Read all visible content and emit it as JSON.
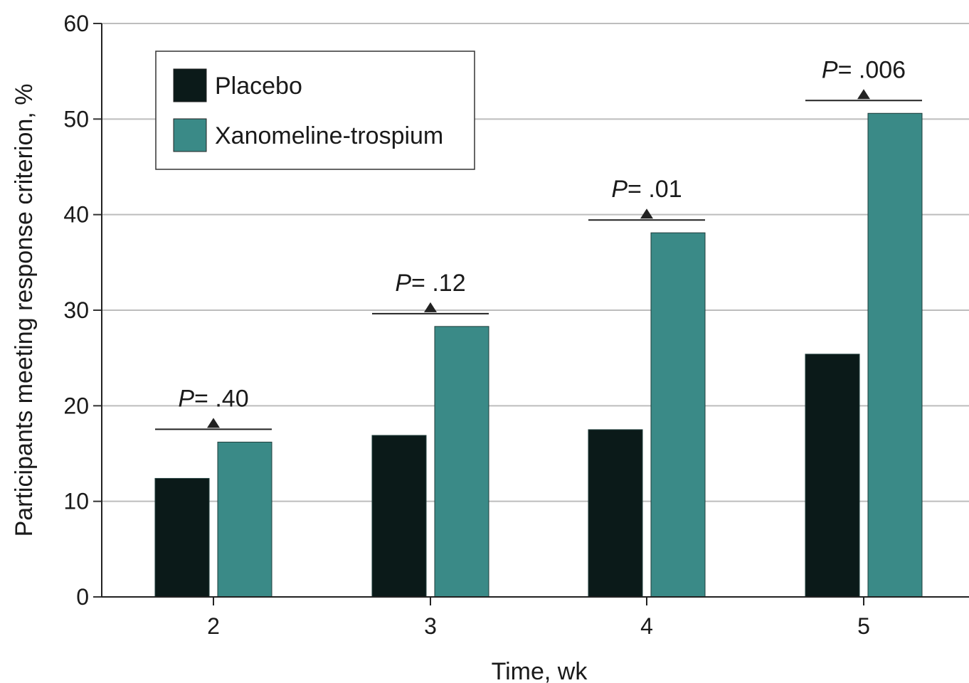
{
  "chart_data": {
    "type": "bar",
    "xlabel": "Time, wk",
    "ylabel": "Participants meeting response criterion, %",
    "ylim": [
      0,
      60
    ],
    "yticks": [
      0,
      10,
      20,
      30,
      40,
      50,
      60
    ],
    "grid": true,
    "legend_position": "top-left",
    "categories": [
      "2",
      "3",
      "4",
      "5"
    ],
    "series": [
      {
        "name": "Placebo",
        "color": "#0b1a19",
        "values": [
          12.4,
          16.9,
          17.5,
          25.4
        ]
      },
      {
        "name": "Xanomeline-trospium",
        "color": "#3a8a87",
        "values": [
          16.2,
          28.3,
          38.1,
          50.6
        ]
      }
    ],
    "annotations": [
      {
        "category": "2",
        "p_label": "P",
        "p_value": "= .40"
      },
      {
        "category": "3",
        "p_label": "P",
        "p_value": "= .12"
      },
      {
        "category": "4",
        "p_label": "P",
        "p_value": "= .01"
      },
      {
        "category": "5",
        "p_label": "P",
        "p_value": "= .006"
      }
    ]
  }
}
